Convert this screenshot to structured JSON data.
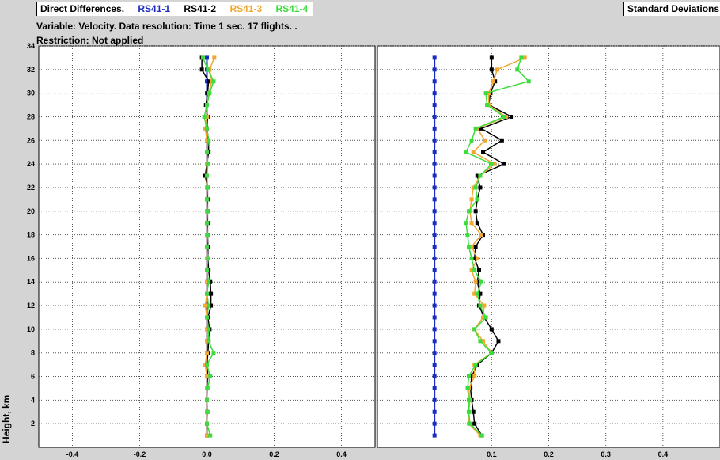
{
  "header": {
    "title": "Direct Differences.",
    "variable_line": "Variable: Velocity. Data resolution: Time 1 sec. 17 flights. .",
    "restriction_line": "Restriction: Not applied",
    "right_title": "Standard Deviations"
  },
  "legend": [
    {
      "name": "RS41-1",
      "color": "#1a2dbf"
    },
    {
      "name": "RS41-2",
      "color": "#000000"
    },
    {
      "name": "RS41-3",
      "color": "#f0a830"
    },
    {
      "name": "RS41-4",
      "color": "#3ddc3d"
    }
  ],
  "chart_data": [
    {
      "type": "line",
      "title": "Direct Differences.",
      "ylabel": "Height, km",
      "xlim": [
        -0.5,
        0.5
      ],
      "ylim": [
        0,
        34
      ],
      "x_ticks": [
        -0.4,
        -0.2,
        0.0,
        0.2,
        0.4
      ],
      "y_ticks": [
        2,
        4,
        6,
        8,
        10,
        12,
        14,
        16,
        18,
        20,
        22,
        24,
        26,
        28,
        30,
        32,
        34
      ],
      "grid": true,
      "series": [
        {
          "name": "RS41-1",
          "color": "#1a2dbf",
          "points": [
            [
              0.0,
              1
            ],
            [
              0.0,
              2
            ],
            [
              0.0,
              3
            ],
            [
              0.0,
              4
            ],
            [
              0.0,
              5
            ],
            [
              0.0,
              6
            ],
            [
              0.0,
              7
            ],
            [
              0.0,
              8
            ],
            [
              0.0,
              9
            ],
            [
              0.0,
              10
            ],
            [
              0.0,
              11
            ],
            [
              0.0,
              12
            ],
            [
              0.0,
              13
            ],
            [
              0.0,
              14
            ],
            [
              0.0,
              15
            ],
            [
              0.0,
              16
            ],
            [
              0.0,
              17
            ],
            [
              0.0,
              18
            ],
            [
              0.0,
              19
            ],
            [
              0.0,
              20
            ],
            [
              0.0,
              21
            ],
            [
              0.0,
              22
            ],
            [
              0.0,
              23
            ],
            [
              0.0,
              24
            ],
            [
              0.0,
              25
            ],
            [
              0.0,
              26
            ],
            [
              0.0,
              27
            ],
            [
              0.0,
              28
            ],
            [
              0.0,
              29
            ],
            [
              0.0,
              30
            ],
            [
              0.0,
              31
            ],
            [
              0.0,
              32
            ],
            [
              0.0,
              33
            ]
          ]
        },
        {
          "name": "RS41-2",
          "color": "#000000",
          "points": [
            [
              0.0,
              1
            ],
            [
              0.0,
              2
            ],
            [
              0.0,
              3
            ],
            [
              0.0,
              4
            ],
            [
              0.0,
              5
            ],
            [
              0.003,
              6
            ],
            [
              0.0,
              7
            ],
            [
              0.003,
              8
            ],
            [
              0.005,
              9
            ],
            [
              0.008,
              10
            ],
            [
              0.003,
              11
            ],
            [
              0.012,
              12
            ],
            [
              0.012,
              13
            ],
            [
              0.01,
              14
            ],
            [
              0.005,
              15
            ],
            [
              0.003,
              16
            ],
            [
              0.003,
              17
            ],
            [
              0.002,
              18
            ],
            [
              0.002,
              19
            ],
            [
              0.002,
              20
            ],
            [
              0.002,
              21
            ],
            [
              0.002,
              22
            ],
            [
              -0.005,
              23
            ],
            [
              0.0,
              24
            ],
            [
              0.005,
              25
            ],
            [
              0.005,
              26
            ],
            [
              0.0,
              27
            ],
            [
              0.002,
              28
            ],
            [
              -0.003,
              29
            ],
            [
              0.002,
              30
            ],
            [
              0.005,
              31
            ],
            [
              -0.015,
              32
            ],
            [
              -0.015,
              33
            ]
          ]
        },
        {
          "name": "RS41-3",
          "color": "#f0a830",
          "points": [
            [
              0.0,
              1
            ],
            [
              0.0,
              2
            ],
            [
              0.0,
              3
            ],
            [
              0.0,
              4
            ],
            [
              0.0,
              5
            ],
            [
              0.0,
              6
            ],
            [
              -0.005,
              7
            ],
            [
              0.0,
              8
            ],
            [
              0.0,
              9
            ],
            [
              0.0,
              10
            ],
            [
              0.0,
              11
            ],
            [
              -0.005,
              12
            ],
            [
              0.0,
              13
            ],
            [
              0.0,
              14
            ],
            [
              0.0,
              15
            ],
            [
              0.0,
              16
            ],
            [
              0.0,
              17
            ],
            [
              0.0,
              18
            ],
            [
              0.0,
              19
            ],
            [
              0.0,
              20
            ],
            [
              0.0,
              21
            ],
            [
              0.0,
              22
            ],
            [
              0.0,
              23
            ],
            [
              0.0,
              24
            ],
            [
              0.0,
              25
            ],
            [
              0.0,
              26
            ],
            [
              -0.005,
              27
            ],
            [
              0.0,
              28
            ],
            [
              0.0,
              29
            ],
            [
              0.005,
              30
            ],
            [
              0.015,
              31
            ],
            [
              0.008,
              32
            ],
            [
              0.022,
              33
            ]
          ]
        },
        {
          "name": "RS41-4",
          "color": "#3ddc3d",
          "points": [
            [
              0.01,
              1
            ],
            [
              0.0,
              2
            ],
            [
              0.002,
              3
            ],
            [
              0.0,
              4
            ],
            [
              0.002,
              5
            ],
            [
              0.01,
              6
            ],
            [
              0.0,
              7
            ],
            [
              0.02,
              8
            ],
            [
              0.005,
              9
            ],
            [
              0.005,
              10
            ],
            [
              0.0,
              11
            ],
            [
              0.005,
              12
            ],
            [
              0.0,
              13
            ],
            [
              0.005,
              14
            ],
            [
              0.0,
              15
            ],
            [
              0.003,
              16
            ],
            [
              0.0,
              17
            ],
            [
              0.002,
              18
            ],
            [
              0.0,
              19
            ],
            [
              0.002,
              20
            ],
            [
              0.0,
              21
            ],
            [
              0.002,
              22
            ],
            [
              0.0,
              23
            ],
            [
              0.003,
              24
            ],
            [
              0.0,
              25
            ],
            [
              0.005,
              26
            ],
            [
              0.0,
              27
            ],
            [
              -0.008,
              28
            ],
            [
              0.0,
              29
            ],
            [
              0.008,
              30
            ],
            [
              0.02,
              31
            ],
            [
              0.003,
              32
            ],
            [
              -0.012,
              33
            ]
          ]
        }
      ]
    },
    {
      "type": "line",
      "title": "Standard Deviations",
      "ylabel": "Height, km",
      "xlim": [
        -0.1,
        0.5
      ],
      "ylim": [
        0,
        34
      ],
      "x_ticks": [
        0.1,
        0.2,
        0.3,
        0.4
      ],
      "y_ticks": [
        2,
        4,
        6,
        8,
        10,
        12,
        14,
        16,
        18,
        20,
        22,
        24,
        26,
        28,
        30,
        32,
        34
      ],
      "grid": true,
      "series": [
        {
          "name": "RS41-1",
          "color": "#1a2dbf",
          "points": [
            [
              0.0,
              1
            ],
            [
              0.0,
              2
            ],
            [
              0.0,
              3
            ],
            [
              0.0,
              4
            ],
            [
              0.0,
              5
            ],
            [
              0.0,
              6
            ],
            [
              0.0,
              7
            ],
            [
              0.0,
              8
            ],
            [
              0.0,
              9
            ],
            [
              0.0,
              10
            ],
            [
              0.0,
              11
            ],
            [
              0.0,
              12
            ],
            [
              0.0,
              13
            ],
            [
              0.0,
              14
            ],
            [
              0.0,
              15
            ],
            [
              0.0,
              16
            ],
            [
              0.0,
              17
            ],
            [
              0.0,
              18
            ],
            [
              0.0,
              19
            ],
            [
              0.0,
              20
            ],
            [
              0.0,
              21
            ],
            [
              0.0,
              22
            ],
            [
              0.0,
              23
            ],
            [
              0.0,
              24
            ],
            [
              0.0,
              25
            ],
            [
              0.0,
              26
            ],
            [
              0.0,
              27
            ],
            [
              0.0,
              28
            ],
            [
              0.0,
              29
            ],
            [
              0.0,
              30
            ],
            [
              0.0,
              31
            ],
            [
              0.0,
              32
            ],
            [
              0.0,
              33
            ]
          ]
        },
        {
          "name": "RS41-2",
          "color": "#000000",
          "points": [
            [
              0.083,
              1
            ],
            [
              0.07,
              2
            ],
            [
              0.068,
              3
            ],
            [
              0.065,
              4
            ],
            [
              0.063,
              5
            ],
            [
              0.065,
              6
            ],
            [
              0.075,
              7
            ],
            [
              0.1,
              8
            ],
            [
              0.112,
              9
            ],
            [
              0.1,
              10
            ],
            [
              0.087,
              11
            ],
            [
              0.078,
              12
            ],
            [
              0.08,
              13
            ],
            [
              0.075,
              14
            ],
            [
              0.078,
              15
            ],
            [
              0.07,
              16
            ],
            [
              0.072,
              17
            ],
            [
              0.085,
              18
            ],
            [
              0.075,
              19
            ],
            [
              0.072,
              20
            ],
            [
              0.075,
              21
            ],
            [
              0.08,
              22
            ],
            [
              0.075,
              23
            ],
            [
              0.122,
              24
            ],
            [
              0.085,
              25
            ],
            [
              0.118,
              26
            ],
            [
              0.082,
              27
            ],
            [
              0.135,
              28
            ],
            [
              0.095,
              29
            ],
            [
              0.098,
              30
            ],
            [
              0.106,
              31
            ],
            [
              0.1,
              32
            ],
            [
              0.1,
              33
            ]
          ]
        },
        {
          "name": "RS41-3",
          "color": "#f0a830",
          "points": [
            [
              0.08,
              1
            ],
            [
              0.06,
              2
            ],
            [
              0.06,
              3
            ],
            [
              0.062,
              4
            ],
            [
              0.06,
              5
            ],
            [
              0.07,
              6
            ],
            [
              0.07,
              7
            ],
            [
              0.1,
              8
            ],
            [
              0.085,
              9
            ],
            [
              0.07,
              10
            ],
            [
              0.085,
              11
            ],
            [
              0.087,
              12
            ],
            [
              0.07,
              13
            ],
            [
              0.072,
              14
            ],
            [
              0.065,
              15
            ],
            [
              0.075,
              16
            ],
            [
              0.065,
              17
            ],
            [
              0.082,
              18
            ],
            [
              0.065,
              19
            ],
            [
              0.062,
              20
            ],
            [
              0.065,
              21
            ],
            [
              0.068,
              22
            ],
            [
              0.08,
              23
            ],
            [
              0.105,
              24
            ],
            [
              0.068,
              25
            ],
            [
              0.088,
              26
            ],
            [
              0.075,
              27
            ],
            [
              0.125,
              28
            ],
            [
              0.095,
              29
            ],
            [
              0.095,
              30
            ],
            [
              0.103,
              31
            ],
            [
              0.11,
              32
            ],
            [
              0.158,
              33
            ]
          ]
        },
        {
          "name": "RS41-4",
          "color": "#3ddc3d",
          "points": [
            [
              0.083,
              1
            ],
            [
              0.062,
              2
            ],
            [
              0.06,
              3
            ],
            [
              0.06,
              4
            ],
            [
              0.058,
              5
            ],
            [
              0.06,
              6
            ],
            [
              0.072,
              7
            ],
            [
              0.1,
              8
            ],
            [
              0.08,
              9
            ],
            [
              0.07,
              10
            ],
            [
              0.09,
              11
            ],
            [
              0.08,
              12
            ],
            [
              0.075,
              13
            ],
            [
              0.082,
              14
            ],
            [
              0.07,
              15
            ],
            [
              0.065,
              16
            ],
            [
              0.06,
              17
            ],
            [
              0.058,
              18
            ],
            [
              0.055,
              19
            ],
            [
              0.06,
              20
            ],
            [
              0.075,
              21
            ],
            [
              0.072,
              22
            ],
            [
              0.08,
              23
            ],
            [
              0.1,
              24
            ],
            [
              0.055,
              25
            ],
            [
              0.065,
              26
            ],
            [
              0.072,
              27
            ],
            [
              0.122,
              28
            ],
            [
              0.092,
              29
            ],
            [
              0.09,
              30
            ],
            [
              0.165,
              31
            ],
            [
              0.145,
              32
            ],
            [
              0.152,
              33
            ]
          ]
        }
      ]
    }
  ]
}
